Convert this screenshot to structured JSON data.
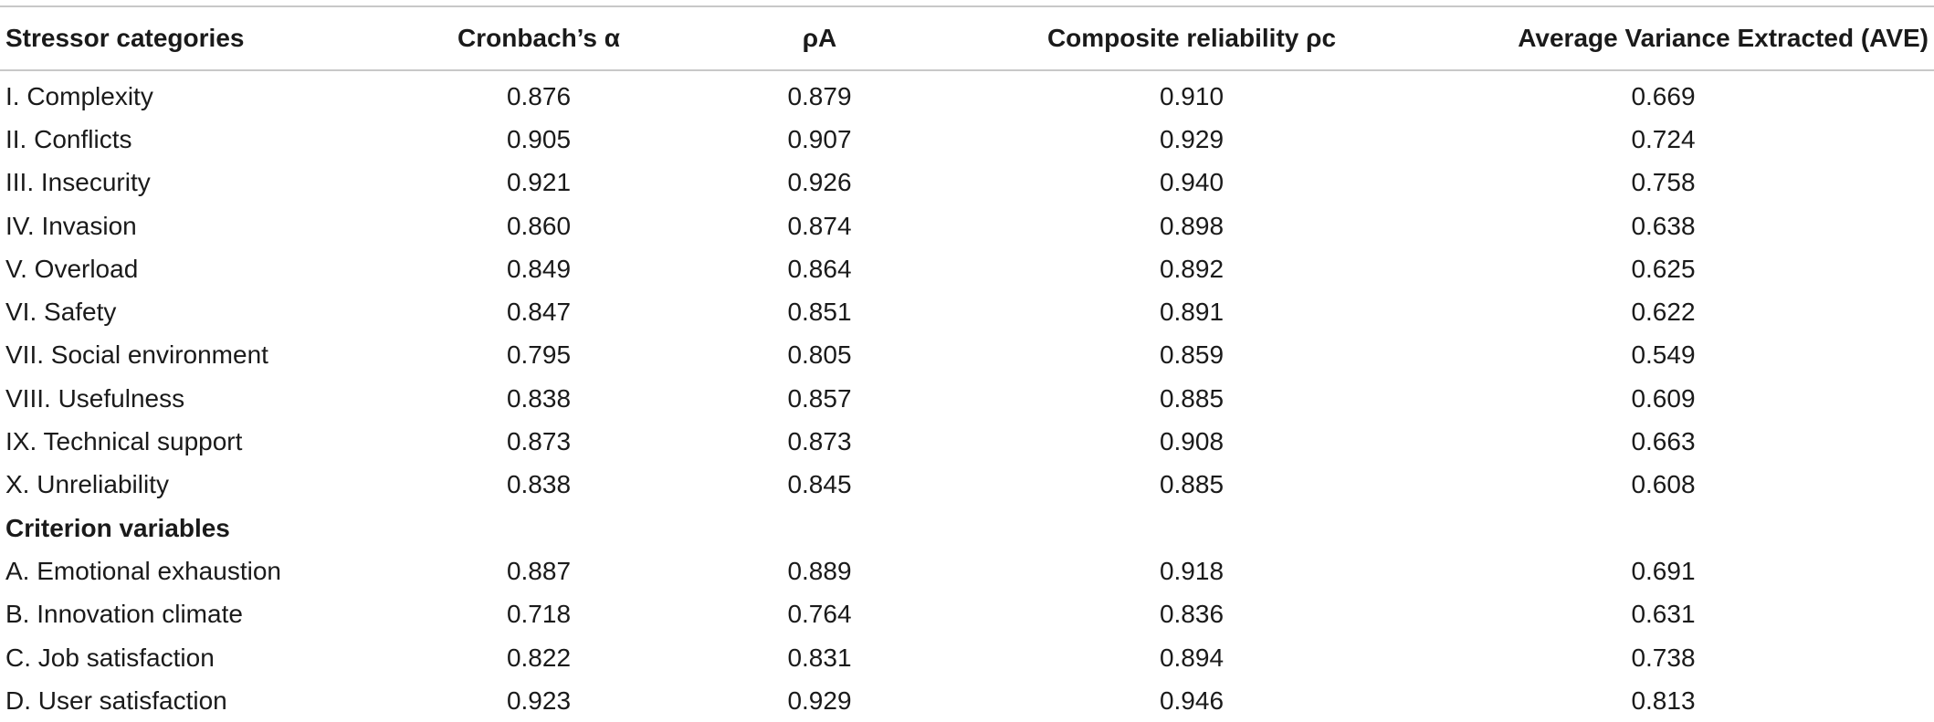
{
  "table": {
    "headers": [
      "Stressor categories",
      "Cronbach’s α",
      "ρA",
      "Composite reliability ρc",
      "Average Variance Extracted (AVE)"
    ],
    "stressor_rows": [
      [
        "I. Complexity",
        "0.876",
        "0.879",
        "0.910",
        "0.669"
      ],
      [
        "II. Conflicts",
        "0.905",
        "0.907",
        "0.929",
        "0.724"
      ],
      [
        "III. Insecurity",
        "0.921",
        "0.926",
        "0.940",
        "0.758"
      ],
      [
        "IV. Invasion",
        "0.860",
        "0.874",
        "0.898",
        "0.638"
      ],
      [
        "V. Overload",
        "0.849",
        "0.864",
        "0.892",
        "0.625"
      ],
      [
        "VI. Safety",
        "0.847",
        "0.851",
        "0.891",
        "0.622"
      ],
      [
        "VII. Social environment",
        "0.795",
        "0.805",
        "0.859",
        "0.549"
      ],
      [
        "VIII. Usefulness",
        "0.838",
        "0.857",
        "0.885",
        "0.609"
      ],
      [
        "IX. Technical support",
        "0.873",
        "0.873",
        "0.908",
        "0.663"
      ],
      [
        "X. Unreliability",
        "0.838",
        "0.845",
        "0.885",
        "0.608"
      ]
    ],
    "criterion_heading": "Criterion variables",
    "criterion_rows": [
      [
        "A. Emotional exhaustion",
        "0.887",
        "0.889",
        "0.918",
        "0.691"
      ],
      [
        "B. Innovation climate",
        "0.718",
        "0.764",
        "0.836",
        "0.631"
      ],
      [
        "C. Job satisfaction",
        "0.822",
        "0.831",
        "0.894",
        "0.738"
      ],
      [
        "D. User satisfaction",
        "0.923",
        "0.929",
        "0.946",
        "0.813"
      ]
    ]
  }
}
